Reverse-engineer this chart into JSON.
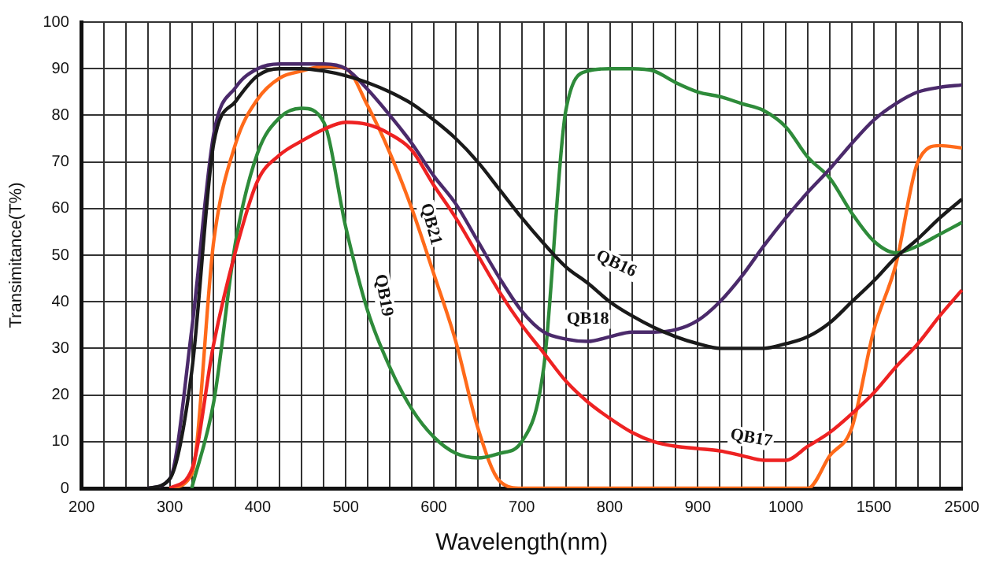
{
  "chart_data": {
    "type": "line",
    "xlabel": "Wavelength(nm)",
    "ylabel": "Transimitance(T%)",
    "categories": [
      "200",
      null,
      null,
      null,
      "300",
      null,
      null,
      null,
      "400",
      null,
      null,
      null,
      "500",
      null,
      null,
      null,
      "600",
      null,
      null,
      null,
      "700",
      null,
      null,
      null,
      "800",
      null,
      null,
      null,
      "900",
      null,
      null,
      null,
      "1000",
      null,
      null,
      null,
      "1500",
      null,
      null,
      null,
      "2500"
    ],
    "ylim": [
      0,
      100
    ],
    "yticks": [
      0,
      10,
      20,
      30,
      40,
      50,
      60,
      70,
      80,
      90,
      100
    ],
    "grid": true,
    "legend": false,
    "marker": "none",
    "line_style": "solid",
    "series": [
      {
        "name": "QB16",
        "color": "#1a1a1a",
        "values": [
          null,
          null,
          null,
          0,
          2,
          25,
          74,
          83,
          88.5,
          90,
          90,
          89.5,
          88.5,
          87,
          85,
          82.5,
          79,
          75,
          70,
          64,
          58,
          52.5,
          47.5,
          44,
          40,
          37,
          34.5,
          32.5,
          31,
          30,
          30,
          30,
          31,
          32.5,
          35.5,
          40,
          44.5,
          49.5,
          53.5,
          58,
          62
        ]
      },
      {
        "name": "QB17",
        "color": "#ee2222",
        "values": [
          null,
          null,
          null,
          null,
          0,
          4,
          31,
          51,
          66,
          71.5,
          74.5,
          77,
          78.5,
          78,
          76,
          72.5,
          65,
          58,
          50,
          42,
          35,
          29,
          23,
          18.5,
          15,
          12,
          10,
          9,
          8.5,
          8,
          7,
          6,
          6,
          9,
          12,
          16,
          20.5,
          26,
          31,
          37,
          42.5
        ]
      },
      {
        "name": "QB18",
        "color": "#4b2a6b",
        "values": [
          null,
          null,
          null,
          0,
          2,
          34,
          76,
          86,
          90,
          91,
          91,
          91,
          90,
          85.5,
          80,
          74,
          67,
          61,
          53,
          45,
          38,
          33.5,
          32,
          31.5,
          32.5,
          33.5,
          33.5,
          34,
          36,
          40,
          45.5,
          52,
          58,
          63.5,
          68.5,
          74,
          79,
          82.5,
          85,
          86,
          86.5
        ]
      },
      {
        "name": "QB19",
        "color": "#2e8b3a",
        "values": [
          null,
          null,
          null,
          null,
          null,
          0,
          18.5,
          53,
          72,
          79.5,
          81.5,
          78.5,
          56,
          38,
          26,
          17,
          11,
          7.5,
          6.5,
          7.5,
          10,
          26,
          81,
          89.5,
          90,
          90,
          89.5,
          87,
          85,
          84,
          82.5,
          81,
          77.5,
          71,
          66.5,
          59,
          53,
          50.5,
          52,
          54.5,
          57
        ]
      },
      {
        "name": "QB21",
        "color": "#ff6a1a",
        "values": [
          null,
          null,
          null,
          null,
          0,
          3,
          53,
          74,
          83.5,
          88,
          89.5,
          90.5,
          90,
          82,
          72,
          60,
          46,
          31.5,
          13,
          1.5,
          0,
          0,
          0,
          0,
          0,
          0,
          0,
          0,
          0,
          0,
          0,
          0,
          0,
          0,
          7,
          13,
          34,
          48,
          70,
          73.5,
          73
        ]
      }
    ]
  }
}
